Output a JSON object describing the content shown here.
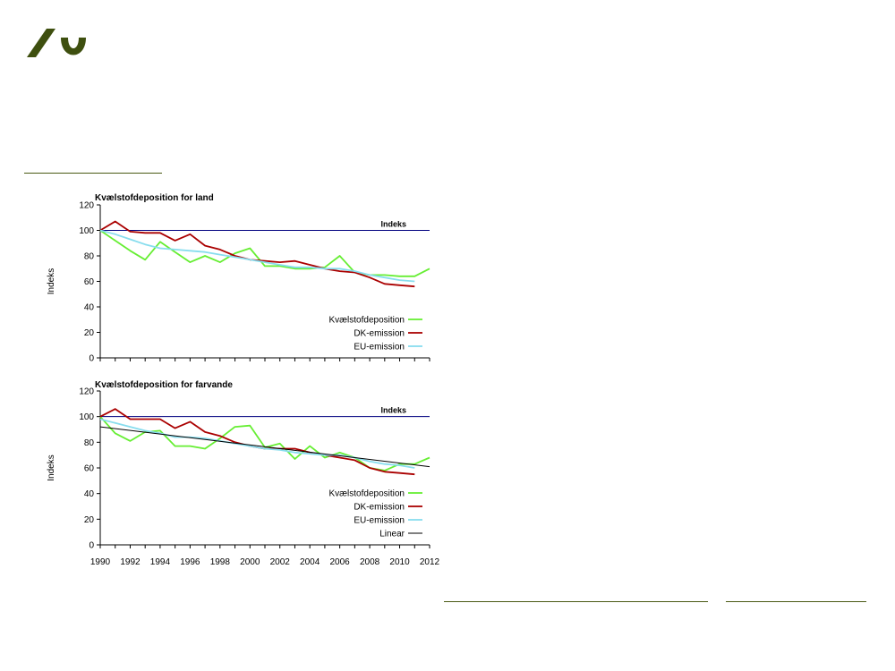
{
  "colors": {
    "logo": "#3e4f0f",
    "rule": "#4a5a14",
    "reference_line": "#00007f",
    "kvaelstof": "#66ee33",
    "dk_emission": "#aa0000",
    "eu_emission": "#88ddee",
    "linear": "#000000"
  },
  "logo": {
    "icon": "aarhus-university-logo"
  },
  "chart_data": [
    {
      "type": "line",
      "title": "Kvælstofdeposition for land",
      "ylabel": "Indeks",
      "xlabel": "",
      "ylim": [
        0,
        120
      ],
      "yticks": [
        0,
        20,
        40,
        60,
        80,
        100,
        120
      ],
      "xlim": [
        1990,
        2012
      ],
      "reference": {
        "label": "Indeks",
        "value": 100
      },
      "legend_position": "bottom-right",
      "series": [
        {
          "name": "Kvælstofdeposition",
          "key": "kvaelstof",
          "x": [
            1990,
            1991,
            1992,
            1993,
            1994,
            1995,
            1996,
            1997,
            1998,
            1999,
            2000,
            2001,
            2002,
            2003,
            2004,
            2005,
            2006,
            2007,
            2008,
            2009,
            2010,
            2011,
            2012
          ],
          "y": [
            100,
            92,
            84,
            77,
            91,
            83,
            75,
            80,
            75,
            82,
            86,
            72,
            72,
            70,
            70,
            71,
            80,
            67,
            65,
            65,
            64,
            64,
            70
          ]
        },
        {
          "name": "DK-emission",
          "key": "dk_emission",
          "x": [
            1990,
            1991,
            1992,
            1993,
            1994,
            1995,
            1996,
            1997,
            1998,
            1999,
            2000,
            2001,
            2002,
            2003,
            2004,
            2005,
            2006,
            2007,
            2008,
            2009,
            2010,
            2011
          ],
          "y": [
            100,
            107,
            99,
            98,
            98,
            92,
            97,
            88,
            85,
            80,
            77,
            76,
            75,
            76,
            73,
            70,
            68,
            67,
            63,
            58,
            57,
            56
          ]
        },
        {
          "name": "EU-emission",
          "key": "eu_emission",
          "x": [
            1990,
            1991,
            1992,
            1993,
            1994,
            1995,
            1996,
            1997,
            1998,
            1999,
            2000,
            2001,
            2002,
            2003,
            2004,
            2005,
            2006,
            2007,
            2008,
            2009,
            2010,
            2011
          ],
          "y": [
            100,
            97,
            93,
            89,
            86,
            85,
            84,
            83,
            81,
            79,
            77,
            75,
            73,
            71,
            71,
            70,
            70,
            68,
            65,
            63,
            61,
            60
          ]
        }
      ]
    },
    {
      "type": "line",
      "title": "Kvælstofdeposition for farvande",
      "ylabel": "Indeks",
      "xlabel": "",
      "ylim": [
        0,
        120
      ],
      "yticks": [
        0,
        20,
        40,
        60,
        80,
        100,
        120
      ],
      "xlim": [
        1990,
        2012
      ],
      "xticks": [
        1990,
        1992,
        1994,
        1996,
        1998,
        2000,
        2002,
        2004,
        2006,
        2008,
        2010,
        2012
      ],
      "reference": {
        "label": "Indeks",
        "value": 100
      },
      "legend_position": "bottom-right",
      "series": [
        {
          "name": "Kvælstofdeposition",
          "key": "kvaelstof",
          "x": [
            1990,
            1991,
            1992,
            1993,
            1994,
            1995,
            1996,
            1997,
            1998,
            1999,
            2000,
            2001,
            2002,
            2003,
            2004,
            2005,
            2006,
            2007,
            2008,
            2009,
            2010,
            2011,
            2012
          ],
          "y": [
            100,
            87,
            81,
            88,
            89,
            77,
            77,
            75,
            83,
            92,
            93,
            76,
            79,
            67,
            77,
            68,
            72,
            68,
            60,
            58,
            63,
            63,
            68
          ]
        },
        {
          "name": "DK-emission",
          "key": "dk_emission",
          "x": [
            1990,
            1991,
            1992,
            1993,
            1994,
            1995,
            1996,
            1997,
            1998,
            1999,
            2000,
            2001,
            2002,
            2003,
            2004,
            2005,
            2006,
            2007,
            2008,
            2009,
            2010,
            2011
          ],
          "y": [
            100,
            106,
            98,
            98,
            98,
            91,
            96,
            88,
            85,
            80,
            77,
            75,
            75,
            75,
            72,
            70,
            68,
            66,
            60,
            57,
            56,
            55
          ]
        },
        {
          "name": "EU-emission",
          "key": "eu_emission",
          "x": [
            1990,
            1991,
            1992,
            1993,
            1994,
            1995,
            1996,
            1997,
            1998,
            1999,
            2000,
            2001,
            2002,
            2003,
            2004,
            2005,
            2006,
            2007,
            2008,
            2009,
            2010,
            2011
          ],
          "y": [
            98,
            95,
            92,
            89,
            87,
            84,
            84,
            83,
            81,
            79,
            77,
            75,
            74,
            72,
            71,
            70,
            70,
            68,
            65,
            63,
            62,
            60
          ]
        },
        {
          "name": "Linear",
          "key": "linear",
          "x": [
            1990,
            2012
          ],
          "y": [
            92,
            61
          ]
        }
      ]
    }
  ]
}
